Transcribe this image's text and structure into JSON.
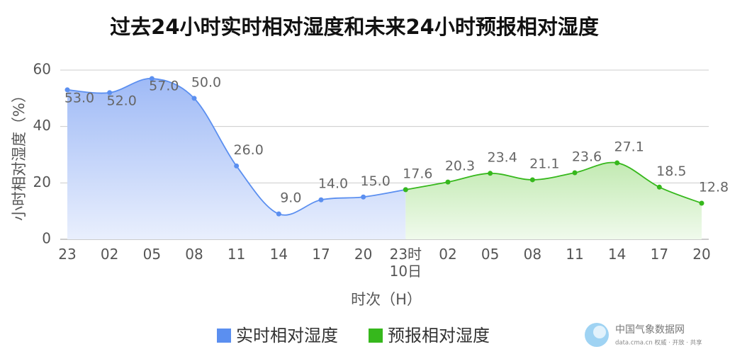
{
  "chart_data": {
    "type": "area-line",
    "title": "过去24小时实时相对湿度和未来24小时预报相对湿度",
    "y_label": "小时相对湿度（%）",
    "x_label": "时次（H）",
    "categories": [
      "23",
      "02",
      "05",
      "08",
      "11",
      "14",
      "17",
      "20",
      "23时\n10日",
      "02",
      "05",
      "08",
      "11",
      "14",
      "17",
      "20"
    ],
    "ylim": [
      0,
      60
    ],
    "yticks": [
      0,
      20,
      40,
      60
    ],
    "grid": true,
    "legend": "bottom",
    "series": [
      {
        "name": "实时相对湿度",
        "color": "#5b8ff0",
        "fill_top": "#9fbaf6",
        "fill_bottom": "#e9effd",
        "values": [
          53,
          52,
          57,
          50,
          26,
          9,
          14,
          15,
          17.6,
          null,
          null,
          null,
          null,
          null,
          null,
          null
        ],
        "value_labels": [
          "53.0",
          "52.0",
          "57.0",
          "50.0",
          "26.0",
          "9.0",
          "14.0",
          "15.0",
          "17.6",
          null,
          null,
          null,
          null,
          null,
          null,
          null
        ]
      },
      {
        "name": "预报相对湿度",
        "color": "#36b81c",
        "fill_top": "#c2eab2",
        "fill_bottom": "#f0faec",
        "values": [
          null,
          null,
          null,
          null,
          null,
          null,
          null,
          null,
          17.6,
          20.3,
          23.4,
          21.1,
          23.6,
          27.1,
          18.5,
          12.8
        ],
        "value_labels": [
          null,
          null,
          null,
          null,
          null,
          null,
          null,
          null,
          null,
          "20.3",
          "23.4",
          "21.1",
          "23.6",
          "27.1",
          "18.5",
          "12.8"
        ]
      }
    ]
  },
  "logo": {
    "name": "中国气象数据网",
    "tagline": "data.cma.cn 权威 · 开放 · 共享"
  }
}
